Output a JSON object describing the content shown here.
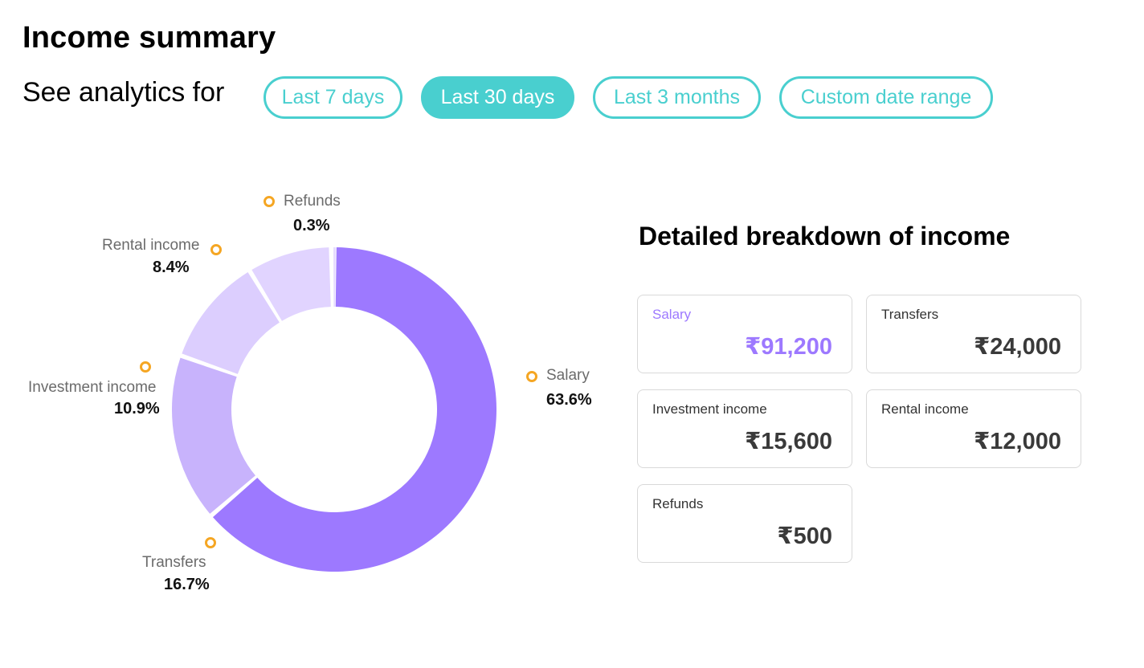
{
  "page": {
    "title": "Income summary",
    "analytics_label": "See analytics for"
  },
  "filters": [
    {
      "label": "Last 7 days",
      "active": false
    },
    {
      "label": "Last 30 days",
      "active": true
    },
    {
      "label": "Last 3 months",
      "active": false
    },
    {
      "label": "Custom date range",
      "active": false
    }
  ],
  "colors": {
    "accent": "#49cfcf",
    "salary": "#9d79ff",
    "marker": "#f5a623"
  },
  "chart_data": {
    "type": "pie",
    "variant": "donut",
    "categories": [
      "Salary",
      "Transfers",
      "Investment income",
      "Rental income",
      "Refunds"
    ],
    "values": [
      63.6,
      16.7,
      10.9,
      8.4,
      0.3
    ],
    "value_labels": [
      "63.6%",
      "16.7%",
      "10.9%",
      "8.4%",
      "0.3%"
    ],
    "colors": [
      "#9d79ff",
      "#c8b3fc",
      "#dccefe",
      "#e1d4ff",
      "#e6dbff"
    ]
  },
  "breakdown": {
    "title": "Detailed breakdown of income",
    "cards": [
      {
        "label": "Salary",
        "value": "₹91,200"
      },
      {
        "label": "Transfers",
        "value": "₹24,000"
      },
      {
        "label": "Investment income",
        "value": "₹15,600"
      },
      {
        "label": "Rental income",
        "value": "₹12,000"
      },
      {
        "label": "Refunds",
        "value": "₹500"
      }
    ]
  }
}
